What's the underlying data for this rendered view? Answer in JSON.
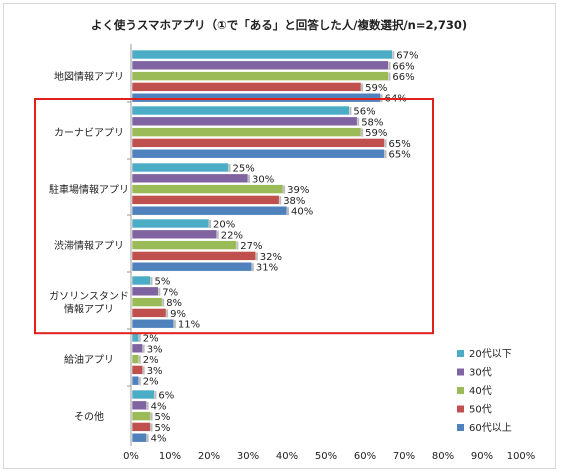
{
  "chart_data": {
    "type": "bar",
    "orientation": "horizontal",
    "title": "よく使うスマホアプリ（①で「ある」と回答した人/複数選択/n=2,730)",
    "categories": [
      "地図情報アプリ",
      "カーナビアプリ",
      "駐車場情報アプリ",
      "渋滞情報アプリ",
      "ガソリンスタンド\n情報アプリ",
      "給油アプリ",
      "その他"
    ],
    "series": [
      {
        "name": "20代以下",
        "color": "#4bacc6",
        "values": [
          67,
          56,
          25,
          20,
          5,
          2,
          6
        ]
      },
      {
        "name": "30代",
        "color": "#8064a2",
        "values": [
          66,
          58,
          30,
          22,
          7,
          3,
          4
        ]
      },
      {
        "name": "40代",
        "color": "#9bbb59",
        "values": [
          66,
          59,
          39,
          27,
          8,
          2,
          5
        ]
      },
      {
        "name": "50代",
        "color": "#c0504d",
        "values": [
          59,
          65,
          38,
          32,
          9,
          3,
          5
        ]
      },
      {
        "name": "60代以上",
        "color": "#4f81bd",
        "values": [
          64,
          65,
          40,
          31,
          11,
          2,
          4
        ]
      }
    ],
    "xlim": [
      0,
      100
    ],
    "x_ticks": [
      "0%",
      "10%",
      "20%",
      "30%",
      "40%",
      "50%",
      "60%",
      "70%",
      "80%",
      "90%",
      "100%"
    ],
    "value_suffix": "%",
    "legend_position": "right",
    "highlight": {
      "categories": [
        "カーナビアプリ",
        "駐車場情報アプリ",
        "渋滞情報アプリ",
        "ガソリンスタンド\n情報アプリ"
      ],
      "color": "#e0201b"
    },
    "grid": false
  }
}
